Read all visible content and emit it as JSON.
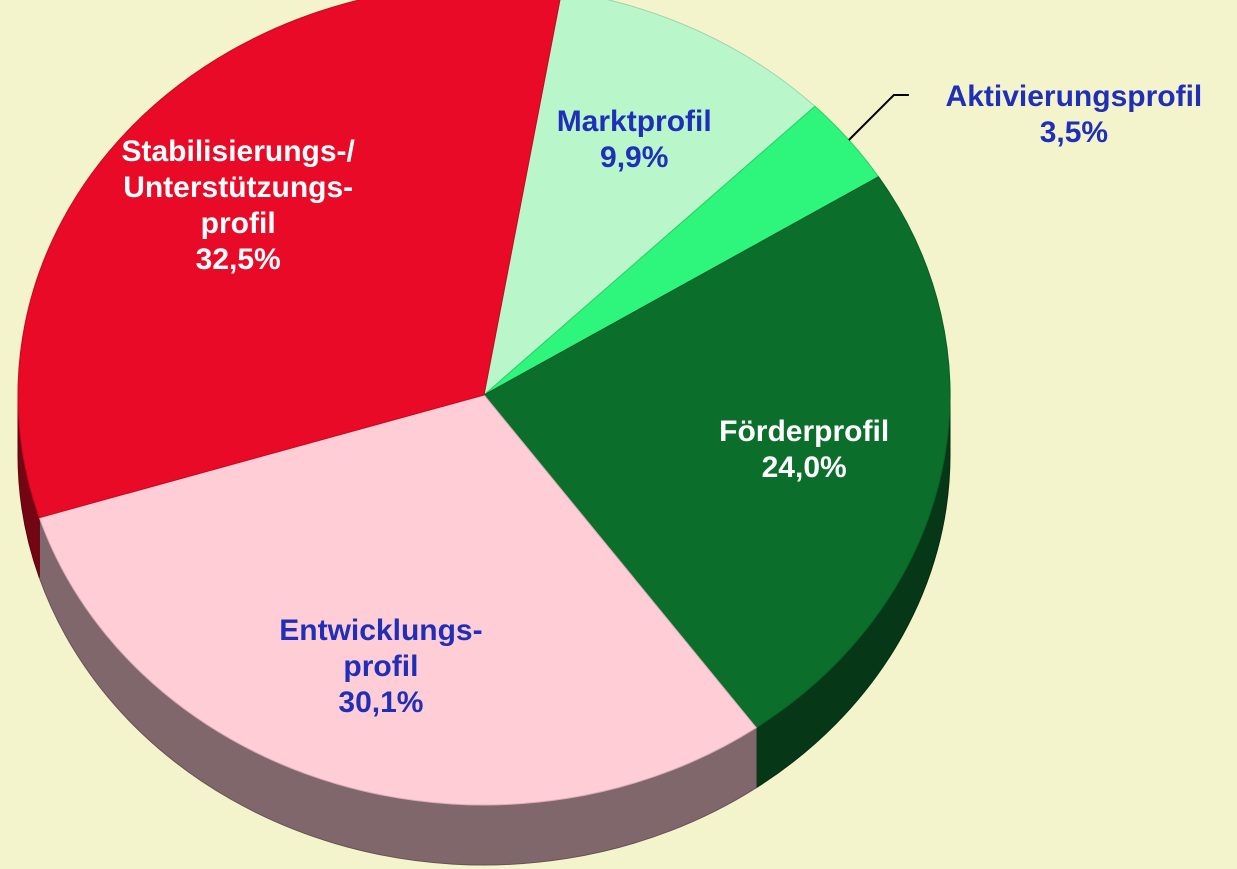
{
  "chart_data": {
    "type": "pie",
    "categories": [
      "Marktprofil",
      "Aktivierungsprofil",
      "Förderprofil",
      "Entwicklungs-\nprofil",
      "Stabilisierungs-/\nUnterstützungs-\nprofil"
    ],
    "values": [
      9.9,
      3.5,
      24.0,
      30.1,
      32.5
    ],
    "value_labels": [
      "9,9%",
      "3,5%",
      "24,0%",
      "30,1%",
      "32,5%"
    ],
    "colors": [
      "#b9f7cb",
      "#2ef57b",
      "#0b6e2b",
      "#ffcdd5",
      "#e80a26"
    ],
    "label_colors": [
      "#1f2fb8",
      "#1f2fb8",
      "#ffffff",
      "#1f2fb8",
      "#ffffff"
    ]
  }
}
